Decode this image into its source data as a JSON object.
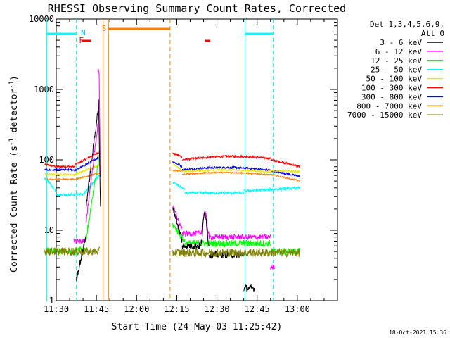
{
  "chart_data": {
    "type": "line",
    "title": "RHESSI Observing Summary Count Rates, Corrected",
    "xlabel": "Start Time (24-May-03 11:25:42)",
    "ylabel": "Corrected Count Rate (s",
    "ylabel_sup1": "-1",
    "ylabel_mid": " detector",
    "ylabel_sup2": "-1",
    "ylabel_end": ")",
    "yscale": "log",
    "ylim": [
      1,
      10000
    ],
    "xlim_minutes": [
      11.5,
      13.25
    ],
    "x_ticks": [
      "11:30",
      "11:45",
      "12:00",
      "12:15",
      "12:30",
      "12:45",
      "13:00"
    ],
    "y_ticks": [
      "1",
      "10",
      "100",
      "1000",
      "10000"
    ],
    "legend_header": [
      "Det 1,3,4,5,6,9,",
      "Att 0"
    ],
    "legend_position": "right",
    "series": [
      {
        "name": "3 - 6 keV",
        "color": "#000000"
      },
      {
        "name": "6 - 12 keV",
        "color": "#ff00ff"
      },
      {
        "name": "12 - 25 keV",
        "color": "#00ff00"
      },
      {
        "name": "25 - 50 keV",
        "color": "#00ffff"
      },
      {
        "name": "50 - 100 keV",
        "color": "#e8e800"
      },
      {
        "name": "100 - 300 keV",
        "color": "#ff0000"
      },
      {
        "name": "300 - 800 keV",
        "color": "#0000ff"
      },
      {
        "name": "800 - 7000 keV",
        "color": "#ff8000"
      },
      {
        "name": "7000 - 15000 keV",
        "color": "#808000"
      }
    ],
    "annotations": [
      {
        "label": "F",
        "color": "#ff0000"
      },
      {
        "label": "N",
        "color": "#00bfff"
      },
      {
        "label": "S",
        "color": "#ff8000"
      }
    ],
    "footer_timestamp": "18-Oct-2021 15:36"
  }
}
